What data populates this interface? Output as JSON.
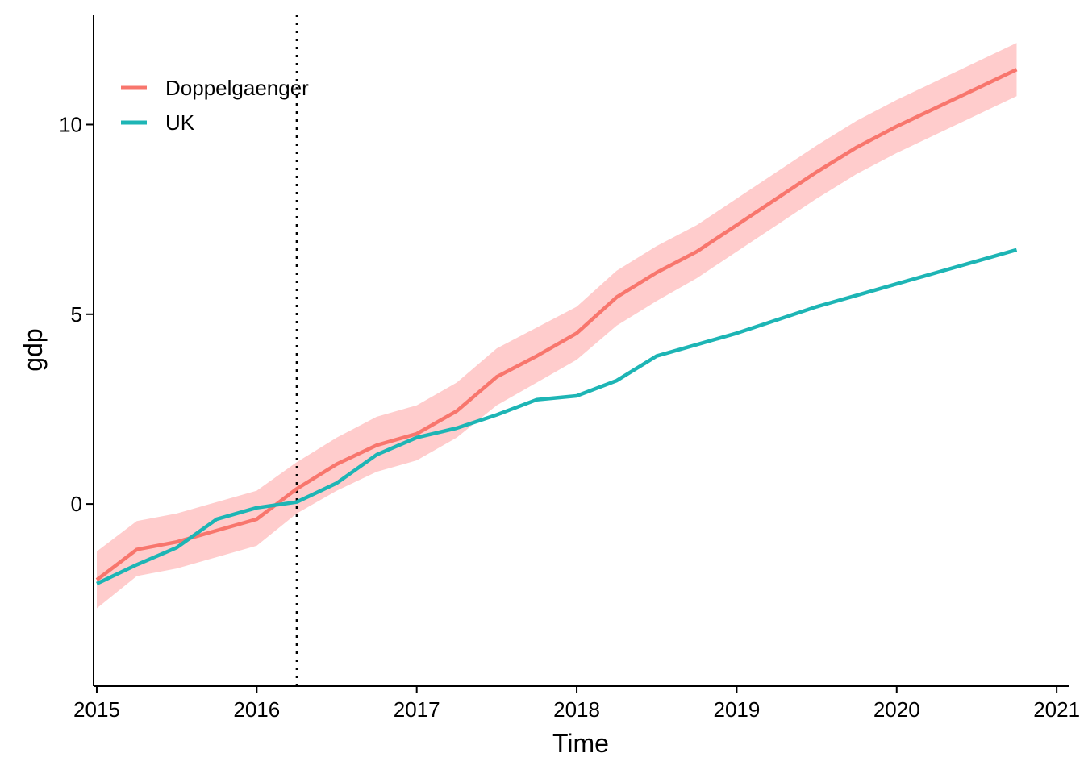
{
  "chart_data": {
    "type": "line",
    "title": "",
    "xlabel": "Time",
    "ylabel": "gdp",
    "xlim": [
      2014.98,
      2021.08
    ],
    "ylim": [
      -4.8,
      12.9
    ],
    "xticks": [
      2015,
      2016,
      2017,
      2018,
      2019,
      2020,
      2021
    ],
    "yticks": [
      0,
      5,
      10
    ],
    "grid": false,
    "legend_position": "top-left",
    "reference_line": {
      "x": 2016.25,
      "style": "dotted"
    },
    "x": [
      2015.0,
      2015.25,
      2015.5,
      2015.75,
      2016.0,
      2016.25,
      2016.5,
      2016.75,
      2017.0,
      2017.25,
      2017.5,
      2017.75,
      2018.0,
      2018.25,
      2018.5,
      2018.75,
      2019.0,
      2019.25,
      2019.5,
      2019.75,
      2020.0,
      2020.25,
      2020.5,
      2020.75
    ],
    "series": [
      {
        "name": "Doppelgaenger",
        "color": "#F8766D",
        "band_color": "#FFCCCC",
        "values": [
          -2.0,
          -1.2,
          -1.0,
          -0.7,
          -0.4,
          0.4,
          1.05,
          1.55,
          1.85,
          2.45,
          3.35,
          3.9,
          4.5,
          5.45,
          6.1,
          6.65,
          7.35,
          8.05,
          8.75,
          9.4,
          9.95,
          10.45,
          10.95,
          11.45
        ],
        "lower": [
          -2.75,
          -1.9,
          -1.7,
          -1.4,
          -1.1,
          -0.25,
          0.35,
          0.85,
          1.15,
          1.75,
          2.6,
          3.2,
          3.8,
          4.7,
          5.35,
          5.95,
          6.65,
          7.35,
          8.05,
          8.7,
          9.25,
          9.75,
          10.25,
          10.75
        ],
        "upper": [
          -1.25,
          -0.45,
          -0.25,
          0.05,
          0.35,
          1.1,
          1.75,
          2.3,
          2.6,
          3.2,
          4.1,
          4.65,
          5.2,
          6.15,
          6.8,
          7.35,
          8.05,
          8.75,
          9.45,
          10.1,
          10.65,
          11.15,
          11.65,
          12.15
        ]
      },
      {
        "name": "UK",
        "color": "#1DB5B5",
        "values": [
          -2.1,
          -1.6,
          -1.15,
          -0.4,
          -0.1,
          0.05,
          0.55,
          1.3,
          1.75,
          2.0,
          2.35,
          2.75,
          2.85,
          3.25,
          3.9,
          4.2,
          4.5,
          4.85,
          5.2,
          5.5,
          5.8,
          6.1,
          6.4,
          6.7
        ]
      }
    ]
  }
}
